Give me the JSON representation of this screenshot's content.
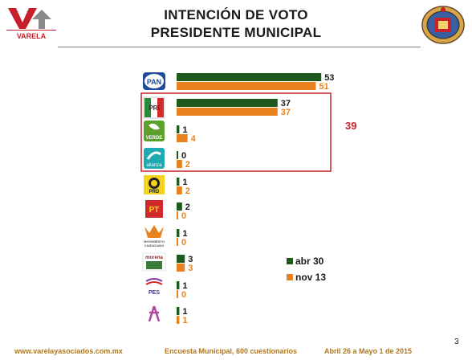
{
  "header": {
    "title_line1": "INTENCIÓN DE VOTO",
    "title_line2": "PRESIDENTE MUNICIPAL",
    "brand": "VARELA"
  },
  "chart_data": {
    "type": "bar",
    "orientation": "horizontal",
    "categories": [
      "PAN",
      "PRI",
      "VERDE",
      "alianza",
      "PRD",
      "PT",
      "MOVIMIENTO CIUDADANO",
      "morena",
      "PES",
      "Humanista"
    ],
    "series": [
      {
        "name": "abr 30",
        "color": "#1e5a1e",
        "values": [
          53,
          37,
          1,
          0,
          1,
          2,
          1,
          3,
          1,
          1
        ]
      },
      {
        "name": "nov 13",
        "color": "#e8821e",
        "values": [
          51,
          37,
          4,
          2,
          2,
          0,
          0,
          3,
          0,
          1
        ]
      }
    ],
    "annotation": {
      "text": "39",
      "color": "#c8202a"
    },
    "legend_position": "bottom-right",
    "grid": false
  },
  "footer": {
    "website": "www.varelayasociados.com.mx",
    "survey": "Encuesta Municipal, 600 cuestionarios",
    "dates": "Abril  26 a Mayo 1 de 2015",
    "page": "3"
  },
  "colors": {
    "accent_red": "#c8202a",
    "dark_green": "#1e5a1e",
    "orange": "#e8821e"
  }
}
